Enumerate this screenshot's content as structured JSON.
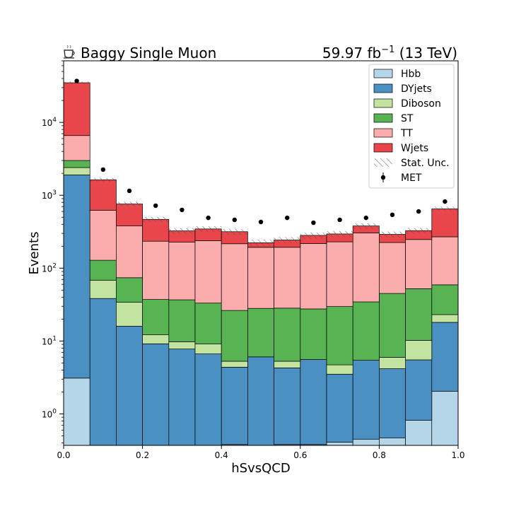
{
  "header": {
    "left_title": "Baggy Single Muon",
    "right_title_main": "59.97 fb",
    "right_title_exp": "−1",
    "right_title_suffix": " (13 TeV)"
  },
  "icons": {
    "title_icon": "coffee-cup-icon"
  },
  "chart_data": {
    "type": "bar",
    "stacked": true,
    "xlabel": "hSvsQCD",
    "ylabel": "Events",
    "yscale": "log",
    "xlim": [
      0,
      1
    ],
    "ylim": [
      0.37,
      70000
    ],
    "x_ticks": [
      "0.0",
      "0.2",
      "0.4",
      "0.6",
      "0.8",
      "1.0"
    ],
    "y_ticks": [
      {
        "value": 1,
        "base": "10",
        "exp": "0"
      },
      {
        "value": 10,
        "base": "10",
        "exp": "1"
      },
      {
        "value": 100,
        "base": "10",
        "exp": "2"
      },
      {
        "value": 1000,
        "base": "10",
        "exp": "3"
      },
      {
        "value": 10000,
        "base": "10",
        "exp": "4"
      }
    ],
    "bin_edges": [
      0,
      0.0667,
      0.1333,
      0.2,
      0.2667,
      0.3333,
      0.4,
      0.4667,
      0.5333,
      0.6,
      0.6667,
      0.7333,
      0.8,
      0.8667,
      0.9333,
      1.0
    ],
    "series": [
      {
        "name": "Hbb",
        "color": "#b5d6e8",
        "values": [
          3.1,
          0.37,
          0.37,
          0.36,
          0.37,
          0.36,
          0.38,
          0.36,
          0.38,
          0.38,
          0.41,
          0.45,
          0.47,
          0.82,
          2.05
        ]
      },
      {
        "name": "DYjets",
        "color": "#4a90c2",
        "values": [
          1897,
          38,
          15.6,
          8.8,
          7.4,
          6.3,
          4.0,
          5.7,
          3.9,
          5.2,
          3.1,
          5.0,
          3.7,
          4.7,
          16.0
        ]
      },
      {
        "name": "Diboson",
        "color": "#c3e4a0",
        "values": [
          500,
          30,
          18,
          3.0,
          2.0,
          2.5,
          0.9,
          0,
          1.0,
          0,
          1.2,
          0,
          1.8,
          4.7,
          5.0
        ]
      },
      {
        "name": "ST",
        "color": "#58b352",
        "values": [
          600,
          60,
          40,
          25,
          27,
          24,
          21,
          22,
          23,
          22,
          25,
          29,
          39,
          42,
          36
        ]
      },
      {
        "name": "TT",
        "color": "#fbacac",
        "values": [
          3600,
          495,
          305,
          197,
          190,
          205,
          190,
          165,
          165,
          190,
          200,
          270,
          180,
          195,
          210
        ]
      },
      {
        "name": "Wjets",
        "color": "#e8464a",
        "values": [
          28400,
          1007,
          380,
          233,
          98,
          107,
          100,
          30,
          50,
          64,
          65,
          75,
          66,
          80,
          381
        ]
      }
    ],
    "uncertainty": {
      "name": "Stat. Unc."
    },
    "data_points": {
      "name": "MET",
      "x": [
        0.0333,
        0.1,
        0.1667,
        0.2333,
        0.3,
        0.3667,
        0.4333,
        0.5,
        0.5667,
        0.6333,
        0.7,
        0.7667,
        0.8333,
        0.9,
        0.9667
      ],
      "y": [
        37000,
        2250,
        1150,
        720,
        630,
        490,
        460,
        430,
        490,
        420,
        460,
        490,
        540,
        600,
        820
      ]
    },
    "legend_position": "top-right",
    "grid": false
  }
}
